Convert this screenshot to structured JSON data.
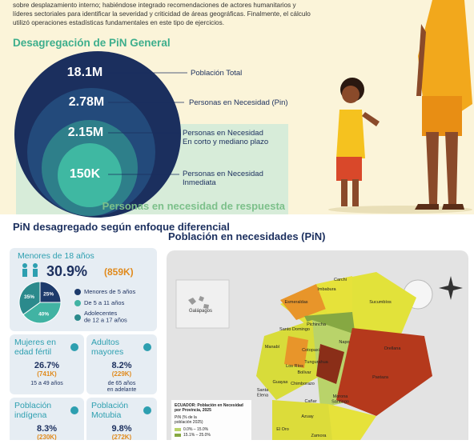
{
  "intro": {
    "lines": [
      "sobre desplazamiento interno; habiéndose integrado recomendaciones de actores humanitarios y",
      "líderes sectoriales para identificar la severidad y criticidad de áreas geográficas.  Finalmente, el cálculo",
      "utilizó operaciones estadísticas fundamentales en este tipo de ejercicios."
    ]
  },
  "pin_general": {
    "title": "Desagregación de PiN General",
    "levels": [
      {
        "value": "18.1M",
        "label": "Población Total"
      },
      {
        "value": "2.78M",
        "label": "Personas en Necesidad (Pin)"
      },
      {
        "value": "2.15M",
        "label": "Personas en Necesidad\nEn corto y mediano plazo"
      },
      {
        "value": "150K",
        "label": "Personas en Necesidad\nInmediata"
      }
    ],
    "footer": "Personas en necesidad de respuesta"
  },
  "enfoque": {
    "title": "PiN desagregado según enfoque diferencial",
    "minors": {
      "title": "Menores de 18 años",
      "percent": "30.9%",
      "count": "(859K)",
      "pie": {
        "values": [
          25,
          40,
          35
        ],
        "value_labels": [
          "25%",
          "40%",
          "35%"
        ],
        "colors": [
          "#1d3a6b",
          "#41b3a3",
          "#2b8a8c"
        ]
      },
      "legend": [
        "Menores de 5 años",
        "De 5 a 11 años",
        "Adolecentes\nde 12 a 17 años"
      ]
    },
    "cards": [
      {
        "title": "Mujeres en\nedad fértil",
        "percent": "26.7%",
        "count": "(741K)",
        "note": "15 a 49 años"
      },
      {
        "title": "Adultos\nmayores",
        "percent": "8.2%",
        "count": "(229K)",
        "note": "de 65 años\nen adelante"
      },
      {
        "title": "Población\nindígena",
        "percent": "8.3%",
        "count": "(230K)"
      },
      {
        "title": "Población\nMotubia",
        "percent": "9.8%",
        "count": "(272K)"
      }
    ]
  },
  "map": {
    "title": "Población en necesidades (PiN)",
    "inset": "Galápagos",
    "legend_title": "ECUADOR: Población en Necesidad\npor Provincia, 2025",
    "legend_sub": "PiN (% de la\npoblación 2025)",
    "legend_items": [
      "0.0% – 15.0%",
      "15.1% – 25.0%"
    ],
    "provinces": [
      "Esmeraldas",
      "Carchi",
      "Imbabura",
      "Sucumbíos",
      "Santo Domingo",
      "Pichincha",
      "Napo",
      "Orellana",
      "Manabí",
      "Cotopaxi",
      "Los Ríos",
      "Tungurahua",
      "Bolívar",
      "Pastaza",
      "Chimborazo",
      "Guayas",
      "Santa\nElena",
      "Cañar",
      "Morona\nSantiago",
      "Azuay",
      "El Oro",
      "Zamora"
    ]
  }
}
